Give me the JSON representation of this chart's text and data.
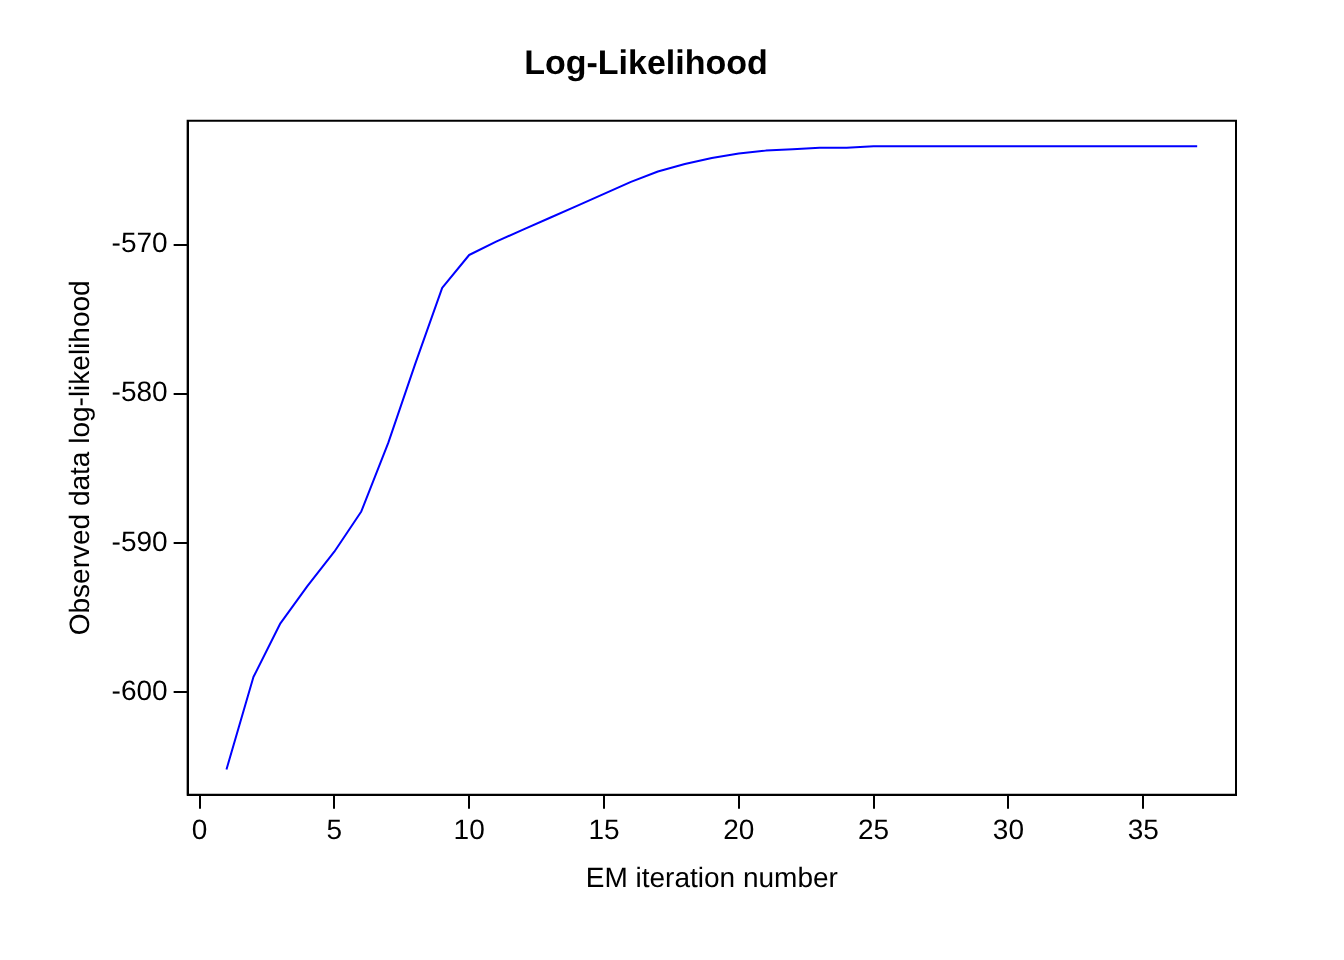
{
  "chart_data": {
    "type": "line",
    "title": "Log-Likelihood",
    "xlabel": "EM iteration number",
    "ylabel": "Observed data log-likelihood",
    "x": [
      1,
      2,
      3,
      4,
      5,
      6,
      7,
      8,
      9,
      10,
      11,
      12,
      13,
      14,
      15,
      16,
      17,
      18,
      19,
      20,
      21,
      22,
      23,
      24,
      25,
      26,
      27,
      28,
      29,
      30,
      31,
      32,
      33,
      34,
      35,
      36,
      37
    ],
    "series": [
      {
        "color": "#0000ff",
        "values": [
          -605.2,
          -599.0,
          -595.4,
          -592.9,
          -590.6,
          -587.9,
          -583.3,
          -578.0,
          -572.9,
          -570.7,
          -569.8,
          -569.0,
          -568.2,
          -567.4,
          -566.6,
          -565.8,
          -565.1,
          -564.6,
          -564.2,
          -563.9,
          -563.7,
          -563.6,
          -563.5,
          -563.5,
          -563.4,
          -563.4,
          -563.4,
          -563.4,
          -563.4,
          -563.4,
          -563.4,
          -563.4,
          -563.4,
          -563.4,
          -563.4,
          -563.4,
          -563.4
        ]
      }
    ],
    "xlim": [
      -0.44,
      38.44
    ],
    "xticks": [
      0,
      5,
      10,
      15,
      20,
      25,
      30,
      35
    ],
    "ylim": [
      -606.9,
      -561.7
    ],
    "yticks": [
      -600,
      -590,
      -580,
      -570
    ],
    "grid": false,
    "legend": false,
    "marker": "none",
    "line_style": "solid"
  }
}
